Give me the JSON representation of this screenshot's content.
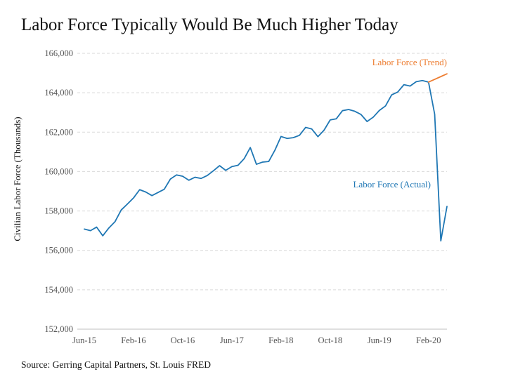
{
  "title": "Labor Force Typically Would Be Much Higher Today",
  "source": "Source: Gerring Capital Partners, St. Louis FRED",
  "colors": {
    "actual": "#1f77b4",
    "trend": "#ed7d31",
    "grid": "#d9d9d9",
    "axis": "#bfbfbf"
  },
  "chart_data": {
    "type": "line",
    "ylabel": "Civilian Labor Force (Thousands)",
    "ylim": [
      152000,
      166000
    ],
    "yticks": [
      152000,
      154000,
      156000,
      158000,
      160000,
      162000,
      164000,
      166000
    ],
    "ytick_labels": [
      "152,000",
      "154,000",
      "156,000",
      "158,000",
      "160,000",
      "162,000",
      "164,000",
      "166,000"
    ],
    "xticks": [
      "Jun-15",
      "Feb-16",
      "Oct-16",
      "Jun-17",
      "Feb-18",
      "Oct-18",
      "Jun-19",
      "Feb-20"
    ],
    "grid": "horizontal dashed",
    "x": [
      "Jun-15",
      "Jul-15",
      "Aug-15",
      "Sep-15",
      "Oct-15",
      "Nov-15",
      "Dec-15",
      "Jan-16",
      "Feb-16",
      "Mar-16",
      "Apr-16",
      "May-16",
      "Jun-16",
      "Jul-16",
      "Aug-16",
      "Sep-16",
      "Oct-16",
      "Nov-16",
      "Dec-16",
      "Jan-17",
      "Feb-17",
      "Mar-17",
      "Apr-17",
      "May-17",
      "Jun-17",
      "Jul-17",
      "Aug-17",
      "Sep-17",
      "Oct-17",
      "Nov-17",
      "Dec-17",
      "Jan-18",
      "Feb-18",
      "Mar-18",
      "Apr-18",
      "May-18",
      "Jun-18",
      "Jul-18",
      "Aug-18",
      "Sep-18",
      "Oct-18",
      "Nov-18",
      "Dec-18",
      "Jan-19",
      "Feb-19",
      "Mar-19",
      "Apr-19",
      "May-19",
      "Jun-19",
      "Jul-19",
      "Aug-19",
      "Sep-19",
      "Oct-19",
      "Nov-19",
      "Dec-19",
      "Jan-20",
      "Feb-20",
      "Mar-20",
      "Apr-20",
      "May-20"
    ],
    "series": [
      {
        "name": "Labor Force (Actual)",
        "color": "#1f77b4",
        "values": [
          157080,
          157000,
          157180,
          156740,
          157140,
          157460,
          158050,
          158350,
          158660,
          159080,
          158960,
          158780,
          158940,
          159100,
          159620,
          159830,
          159760,
          159560,
          159710,
          159650,
          159800,
          160040,
          160300,
          160060,
          160250,
          160320,
          160650,
          161220,
          160370,
          160480,
          160510,
          161080,
          161780,
          161680,
          161720,
          161840,
          162240,
          162160,
          161770,
          162100,
          162620,
          162680,
          163090,
          163150,
          163060,
          162900,
          162540,
          162760,
          163100,
          163330,
          163890,
          164040,
          164410,
          164340,
          164560,
          164620,
          164540,
          162910,
          156480,
          158230
        ]
      },
      {
        "name": "Labor Force (Trend)",
        "color": "#ed7d31",
        "values": [
          null,
          null,
          null,
          null,
          null,
          null,
          null,
          null,
          null,
          null,
          null,
          null,
          null,
          null,
          null,
          null,
          null,
          null,
          null,
          null,
          null,
          null,
          null,
          null,
          null,
          null,
          null,
          null,
          null,
          null,
          null,
          null,
          null,
          null,
          null,
          null,
          null,
          null,
          null,
          null,
          null,
          null,
          null,
          null,
          null,
          null,
          null,
          null,
          null,
          null,
          null,
          null,
          null,
          null,
          null,
          null,
          164540,
          164680,
          164820,
          164960
        ]
      }
    ]
  }
}
